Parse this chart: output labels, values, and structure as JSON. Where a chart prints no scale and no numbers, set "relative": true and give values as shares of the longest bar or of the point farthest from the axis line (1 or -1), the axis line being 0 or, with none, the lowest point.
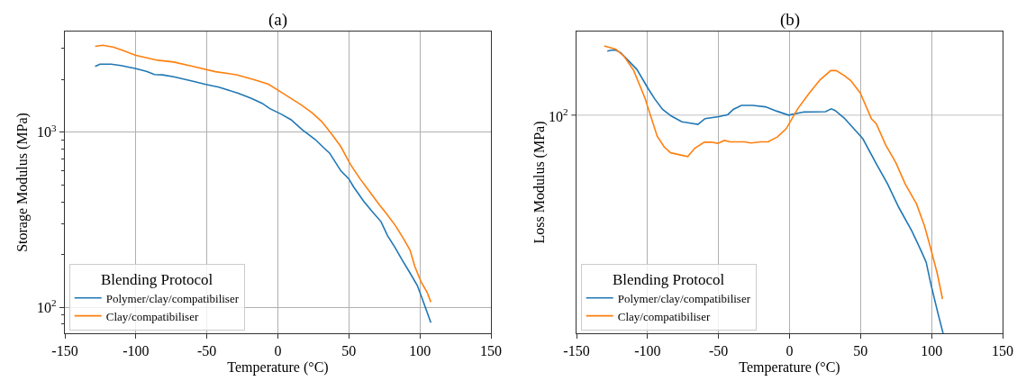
{
  "chart_data": [
    {
      "type": "line",
      "title": "(a)",
      "xlabel": "Temperature (°C)",
      "ylabel": "Storage Modulus (MPa)",
      "log": true,
      "grid": true,
      "legend": "bottom left",
      "legend_title": "Blending Protocol",
      "xlim": [
        -150,
        150
      ],
      "xticks": [
        -150,
        -100,
        -50,
        0,
        50,
        100,
        150
      ],
      "ylim": [
        71,
        3750
      ],
      "yticks": [
        {
          "value": 80,
          "label": null
        },
        {
          "value": 90,
          "label": null
        },
        {
          "value": 100,
          "label": "10$^{2}$"
        },
        {
          "value": 200,
          "label": null
        },
        {
          "value": 300,
          "label": null
        },
        {
          "value": 400,
          "label": null
        },
        {
          "value": 500,
          "label": null
        },
        {
          "value": 600,
          "label": null
        },
        {
          "value": 700,
          "label": null
        },
        {
          "value": 800,
          "label": null
        },
        {
          "value": 900,
          "label": null
        },
        {
          "value": 1000,
          "label": "10$^{3}$"
        },
        {
          "value": 2000,
          "label": null
        },
        {
          "value": 3000,
          "label": null
        }
      ],
      "series": [
        {
          "name": "Polymer/clay/compatibiliser",
          "color": "#1f77b4",
          "x": [
            -128.7,
            -125.3,
            -117.4,
            -110.6,
            -100.5,
            -92.5,
            -86.9,
            -81.2,
            -73.3,
            -59.7,
            -50.7,
            -41.6,
            -28,
            -19,
            -11.1,
            -5.9,
            2.5,
            9.3,
            17.2,
            26.2,
            31.9,
            36.4,
            44.3,
            50,
            53.4,
            56.1,
            60.2,
            65.8,
            72.6,
            77.1,
            82.8,
            87.3,
            93,
            98.2,
            103.2,
            107.7
          ],
          "values": [
            2370,
            2440,
            2440,
            2400,
            2310,
            2220,
            2130,
            2120,
            2070,
            1950,
            1870,
            1805,
            1665,
            1562,
            1460,
            1364,
            1263,
            1175,
            1030,
            908,
            819,
            759,
            601,
            540,
            485,
            452,
            405,
            356,
            308,
            257,
            217,
            187,
            157,
            133,
            103,
            81.5
          ]
        },
        {
          "name": "Clay/compatibiliser",
          "color": "#ff7f0e",
          "x": [
            -128.7,
            -123.5,
            -116,
            -109.5,
            -100.5,
            -84.6,
            -73.3,
            -59.7,
            -43.9,
            -29.2,
            -16.7,
            -6.6,
            3.6,
            16.1,
            24,
            30.8,
            37.6,
            44.3,
            51.1,
            57.9,
            64.7,
            71.5,
            76,
            82.8,
            88.5,
            93,
            96.4,
            100.9,
            105,
            107.7
          ],
          "values": [
            3085,
            3130,
            3055,
            2930,
            2750,
            2570,
            2510,
            2370,
            2210,
            2125,
            1990,
            1875,
            1665,
            1435,
            1290,
            1150,
            980,
            826,
            653,
            540,
            456,
            384,
            346,
            292,
            246,
            212,
            171,
            139,
            122,
            107
          ]
        }
      ]
    },
    {
      "type": "line",
      "title": "(b)",
      "xlabel": "Temperature (°C)",
      "ylabel": "Loss Modulus (MPa)",
      "grid": true,
      "legend": "bottom left",
      "legend_title": "Blending Protocol",
      "xlim": [
        -150,
        150
      ],
      "xticks": [
        -150,
        -100,
        -50,
        0,
        50,
        100,
        150
      ],
      "relative": true,
      "ref_lines": [
        {
          "axis": "y",
          "value": 0.759,
          "color": "#b0b0b0"
        }
      ],
      "annotations": [
        "10$^{2}$"
      ],
      "series": [
        {
          "name": "Polymer/clay/compatibiliser",
          "color": "#1f77b4",
          "x": [
            -128.3,
            -125.6,
            -122.2,
            -118.8,
            -107.5,
            -99.5,
            -95,
            -89.4,
            -83.3,
            -75.8,
            -64.5,
            -59.5,
            -49.8,
            -43.4,
            -39.6,
            -33.9,
            -26,
            -17,
            -9,
            -0.7,
            10.2,
            25.3,
            29.4,
            32.1,
            38.5,
            45.2,
            51.6,
            61.1,
            69,
            76.9,
            86,
            93.2,
            96.2,
            99.5,
            104.1,
            108.1
          ],
          "values": [
            0.982,
            0.985,
            0.985,
            0.976,
            0.918,
            0.851,
            0.816,
            0.779,
            0.756,
            0.736,
            0.727,
            0.747,
            0.754,
            0.761,
            0.779,
            0.793,
            0.793,
            0.788,
            0.773,
            0.759,
            0.77,
            0.771,
            0.781,
            0.775,
            0.749,
            0.712,
            0.677,
            0.59,
            0.52,
            0.438,
            0.357,
            0.281,
            0.247,
            0.171,
            0.077,
            0
          ]
        },
        {
          "name": "Clay/compatibiliser",
          "color": "#ff7f0e",
          "x": [
            -130.5,
            -122.2,
            -116.5,
            -109.7,
            -101.8,
            -93.2,
            -88.2,
            -83.7,
            -71.7,
            -66.7,
            -60,
            -55.4,
            -50.5,
            -45.9,
            -41.9,
            -31.7,
            -27.1,
            -20.4,
            -15.2,
            -8.6,
            -2.3,
            5.7,
            13.6,
            21.5,
            29,
            32.8,
            38.5,
            43,
            49.8,
            57.7,
            61.1,
            67.9,
            74.7,
            81.4,
            89.4,
            95,
            99.5,
            104.1,
            107.7
          ],
          "values": [
            1,
            0.988,
            0.964,
            0.914,
            0.818,
            0.686,
            0.648,
            0.628,
            0.615,
            0.644,
            0.665,
            0.665,
            0.661,
            0.671,
            0.666,
            0.666,
            0.662,
            0.666,
            0.666,
            0.683,
            0.712,
            0.781,
            0.834,
            0.882,
            0.914,
            0.914,
            0.897,
            0.88,
            0.836,
            0.746,
            0.729,
            0.653,
            0.595,
            0.52,
            0.45,
            0.374,
            0.293,
            0.206,
            0.119
          ]
        }
      ]
    }
  ]
}
